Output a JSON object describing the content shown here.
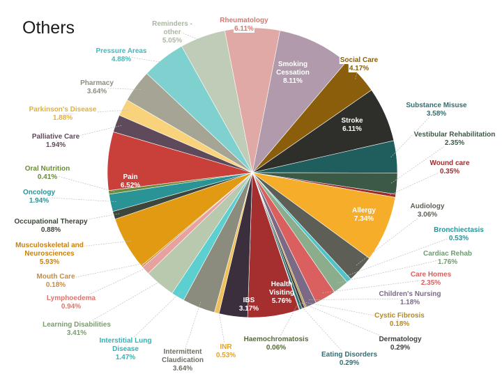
{
  "page": {
    "title": "Others"
  },
  "chart_data": {
    "type": "pie",
    "title": "Others",
    "unit": "%",
    "slices": [
      {
        "label": "Rheumatology",
        "value": 6.11,
        "display": "6.11%",
        "color": "#e0a9a5"
      },
      {
        "label": "Smoking Cessation",
        "value": 8.11,
        "display": "8.11%",
        "color": "#b09aab"
      },
      {
        "label": "Social Care",
        "value": 4.17,
        "display": "4.17%",
        "color": "#8a5e0a"
      },
      {
        "label": "Stroke",
        "value": 6.11,
        "display": "6.11%",
        "color": "#2e2e2a"
      },
      {
        "label": "Substance Misuse",
        "value": 3.58,
        "display": "3.58%",
        "color": "#1f5e5d"
      },
      {
        "label": "Vestibular Rehabilitation",
        "value": 2.35,
        "display": "2.35%",
        "color": "#3b5a46"
      },
      {
        "label": "Wound care",
        "value": 0.35,
        "display": "0.35%",
        "color": "#9b2c2c"
      },
      {
        "label": "Allergy",
        "value": 7.34,
        "display": "7.34%",
        "color": "#f6ae2a"
      },
      {
        "label": "Audiology",
        "value": 3.06,
        "display": "3.06%",
        "color": "#5d5f57"
      },
      {
        "label": "Bronchiectasis",
        "value": 0.53,
        "display": "0.53%",
        "color": "#4fc3c8"
      },
      {
        "label": "Cardiac Rehab",
        "value": 1.76,
        "display": "1.76%",
        "color": "#8bad8c"
      },
      {
        "label": "Care Homes",
        "value": 2.35,
        "display": "2.35%",
        "color": "#d9605e"
      },
      {
        "label": "Children's Nursing",
        "value": 1.18,
        "display": "1.18%",
        "color": "#7a6a86"
      },
      {
        "label": "Cystic Fibrosis",
        "value": 0.18,
        "display": "0.18%",
        "color": "#b58a1f"
      },
      {
        "label": "Dermatology",
        "value": 0.29,
        "display": "0.29%",
        "color": "#3f3f3f"
      },
      {
        "label": "Eating Disorders",
        "value": 0.29,
        "display": "0.29%",
        "color": "#2f6f72"
      },
      {
        "label": "Haemochromatosis",
        "value": 0.06,
        "display": "0.06%",
        "color": "#556b2f"
      },
      {
        "label": "Health Visiting",
        "value": 5.76,
        "display": "5.76%",
        "color": "#a52f2f"
      },
      {
        "label": "IBS",
        "value": 3.17,
        "display": "3.17%",
        "color": "#3c2f3d"
      },
      {
        "label": "INR",
        "value": 0.53,
        "display": "0.53%",
        "color": "#f0c05a"
      },
      {
        "label": "Intermittent Claudication",
        "value": 3.64,
        "display": "3.64%",
        "color": "#8c8c7e"
      },
      {
        "label": "Interstitial Lung Disease",
        "value": 1.47,
        "display": "1.47%",
        "color": "#5ccfd0"
      },
      {
        "label": "Learning Disabilities",
        "value": 3.41,
        "display": "3.41%",
        "color": "#b9c9ae"
      },
      {
        "label": "Lymphoedema",
        "value": 0.94,
        "display": "0.94%",
        "color": "#e7a2a0"
      },
      {
        "label": "Mouth Care",
        "value": 0.18,
        "display": "0.18%",
        "color": "#c98a3a"
      },
      {
        "label": "Musculoskeletal and Neurosciences",
        "value": 5.93,
        "display": "5.93%",
        "color": "#e19a12"
      },
      {
        "label": "Occupational Therapy",
        "value": 0.88,
        "display": "0.88%",
        "color": "#3d463a"
      },
      {
        "label": "Oncology",
        "value": 1.94,
        "display": "1.94%",
        "color": "#2a9396"
      },
      {
        "label": "Oral Nutrition",
        "value": 0.41,
        "display": "0.41%",
        "color": "#6b8a3e"
      },
      {
        "label": "Pain",
        "value": 6.52,
        "display": "6.52%",
        "color": "#c9403b"
      },
      {
        "label": "Palliative Care",
        "value": 1.94,
        "display": "1.94%",
        "color": "#5e4a5b"
      },
      {
        "label": "Parkinson's Disease",
        "value": 1.88,
        "display": "1.88%",
        "color": "#f8d37c"
      },
      {
        "label": "Pharmacy",
        "value": 3.64,
        "display": "3.64%",
        "color": "#a6a595"
      },
      {
        "label": "Pressure Areas",
        "value": 4.88,
        "display": "4.88%",
        "color": "#7fd1d0"
      },
      {
        "label": "Reminders - other",
        "value": 5.05,
        "display": "5.05%",
        "color": "#bfcdb8"
      }
    ]
  }
}
